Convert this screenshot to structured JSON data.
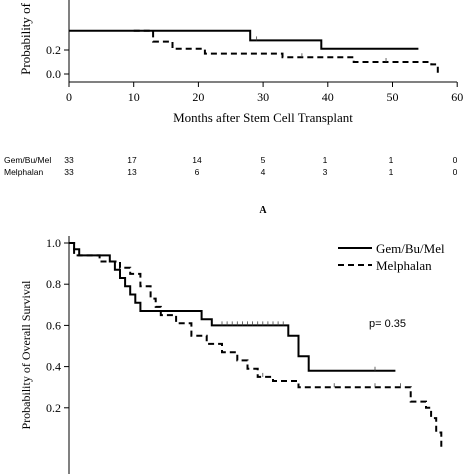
{
  "chart_data": [
    {
      "type": "line",
      "title": "",
      "ylabel": "Probability of",
      "xlabel": "Months after Stem Cell Transplant",
      "xlim": [
        0,
        60
      ],
      "ylim": [
        0,
        1
      ],
      "x_ticks": [
        "0",
        "10",
        "20",
        "30",
        "40",
        "50",
        "60"
      ],
      "y_ticks": [
        "0.0",
        "0.2"
      ],
      "series": [
        {
          "name": "Gem/Bu/Mel",
          "style": "solid",
          "steps": [
            [
              0,
              0.36
            ],
            [
              28,
              0.36
            ],
            [
              28,
              0.28
            ],
            [
              39,
              0.28
            ],
            [
              39,
              0.21
            ],
            [
              54,
              0.21
            ]
          ],
          "censor_x": [
            29
          ]
        },
        {
          "name": "Melphalan",
          "style": "dashed",
          "steps": [
            [
              10,
              0.36
            ],
            [
              13,
              0.36
            ],
            [
              13,
              0.27
            ],
            [
              16,
              0.27
            ],
            [
              16,
              0.21
            ],
            [
              21,
              0.21
            ],
            [
              21,
              0.17
            ],
            [
              33,
              0.17
            ],
            [
              33,
              0.14
            ],
            [
              44,
              0.14
            ],
            [
              44,
              0.1
            ],
            [
              56,
              0.1
            ],
            [
              56,
              0.08
            ],
            [
              57,
              0.08
            ],
            [
              57,
              0.0
            ]
          ],
          "censor_x": [
            36,
            49
          ]
        }
      ],
      "risk_table": {
        "rows": [
          {
            "label": "Gem/Bu/Mel",
            "values": [
              "33",
              "17",
              "14",
              "5",
              "1",
              "1",
              "0"
            ]
          },
          {
            "label": "Melphalan",
            "values": [
              "33",
              "13",
              "6",
              "4",
              "3",
              "1",
              "0"
            ]
          }
        ]
      },
      "panel_label": "A"
    },
    {
      "type": "line",
      "title": "",
      "ylabel": "Probability of Overall Survival",
      "xlabel": "",
      "xlim": [
        0,
        60
      ],
      "ylim": [
        0,
        1
      ],
      "y_ticks": [
        "0.2",
        "0.4",
        "0.6",
        "0.8",
        "1.0"
      ],
      "annotation": "p= 0.35",
      "legend_position": "top-right",
      "series": [
        {
          "name": "Gem/Bu/Mel",
          "style": "solid",
          "steps": [
            [
              0,
              1.0
            ],
            [
              1,
              1.0
            ],
            [
              1,
              0.97
            ],
            [
              2,
              0.97
            ],
            [
              2,
              0.94
            ],
            [
              8,
              0.94
            ],
            [
              8,
              0.91
            ],
            [
              9,
              0.91
            ],
            [
              9,
              0.87
            ],
            [
              10,
              0.87
            ],
            [
              10,
              0.83
            ],
            [
              11,
              0.83
            ],
            [
              11,
              0.79
            ],
            [
              12,
              0.79
            ],
            [
              12,
              0.75
            ],
            [
              13,
              0.75
            ],
            [
              13,
              0.71
            ],
            [
              14,
              0.71
            ],
            [
              14,
              0.67
            ],
            [
              26,
              0.67
            ],
            [
              26,
              0.63
            ],
            [
              28,
              0.63
            ],
            [
              28,
              0.6
            ],
            [
              43,
              0.6
            ],
            [
              43,
              0.55
            ],
            [
              45,
              0.55
            ],
            [
              45,
              0.45
            ],
            [
              47,
              0.45
            ],
            [
              47,
              0.38
            ],
            [
              64,
              0.38
            ]
          ],
          "censor_x": [
            30,
            31,
            32,
            33,
            34,
            35,
            36,
            37,
            38,
            39,
            40,
            41,
            42,
            60
          ]
        },
        {
          "name": "Melphalan",
          "style": "dashed",
          "steps": [
            [
              0,
              1.0
            ],
            [
              1,
              1.0
            ],
            [
              1,
              0.94
            ],
            [
              6,
              0.94
            ],
            [
              6,
              0.91
            ],
            [
              10,
              0.91
            ],
            [
              10,
              0.88
            ],
            [
              12,
              0.88
            ],
            [
              12,
              0.85
            ],
            [
              14,
              0.85
            ],
            [
              14,
              0.79
            ],
            [
              16,
              0.79
            ],
            [
              16,
              0.73
            ],
            [
              17,
              0.73
            ],
            [
              17,
              0.69
            ],
            [
              18,
              0.69
            ],
            [
              18,
              0.65
            ],
            [
              21,
              0.65
            ],
            [
              21,
              0.61
            ],
            [
              24,
              0.61
            ],
            [
              24,
              0.55
            ],
            [
              27,
              0.55
            ],
            [
              27,
              0.51
            ],
            [
              30,
              0.51
            ],
            [
              30,
              0.47
            ],
            [
              33,
              0.47
            ],
            [
              33,
              0.43
            ],
            [
              35,
              0.43
            ],
            [
              35,
              0.39
            ],
            [
              37,
              0.39
            ],
            [
              37,
              0.35
            ],
            [
              40,
              0.35
            ],
            [
              40,
              0.33
            ],
            [
              45,
              0.33
            ],
            [
              45,
              0.3
            ],
            [
              67,
              0.3
            ],
            [
              67,
              0.23
            ],
            [
              70,
              0.23
            ],
            [
              70,
              0.2
            ],
            [
              71,
              0.2
            ],
            [
              71,
              0.15
            ],
            [
              72,
              0.15
            ],
            [
              72,
              0.08
            ],
            [
              73,
              0.08
            ],
            [
              73,
              0.0
            ]
          ],
          "censor_x": [
            38,
            52,
            60,
            65
          ]
        }
      ]
    }
  ]
}
